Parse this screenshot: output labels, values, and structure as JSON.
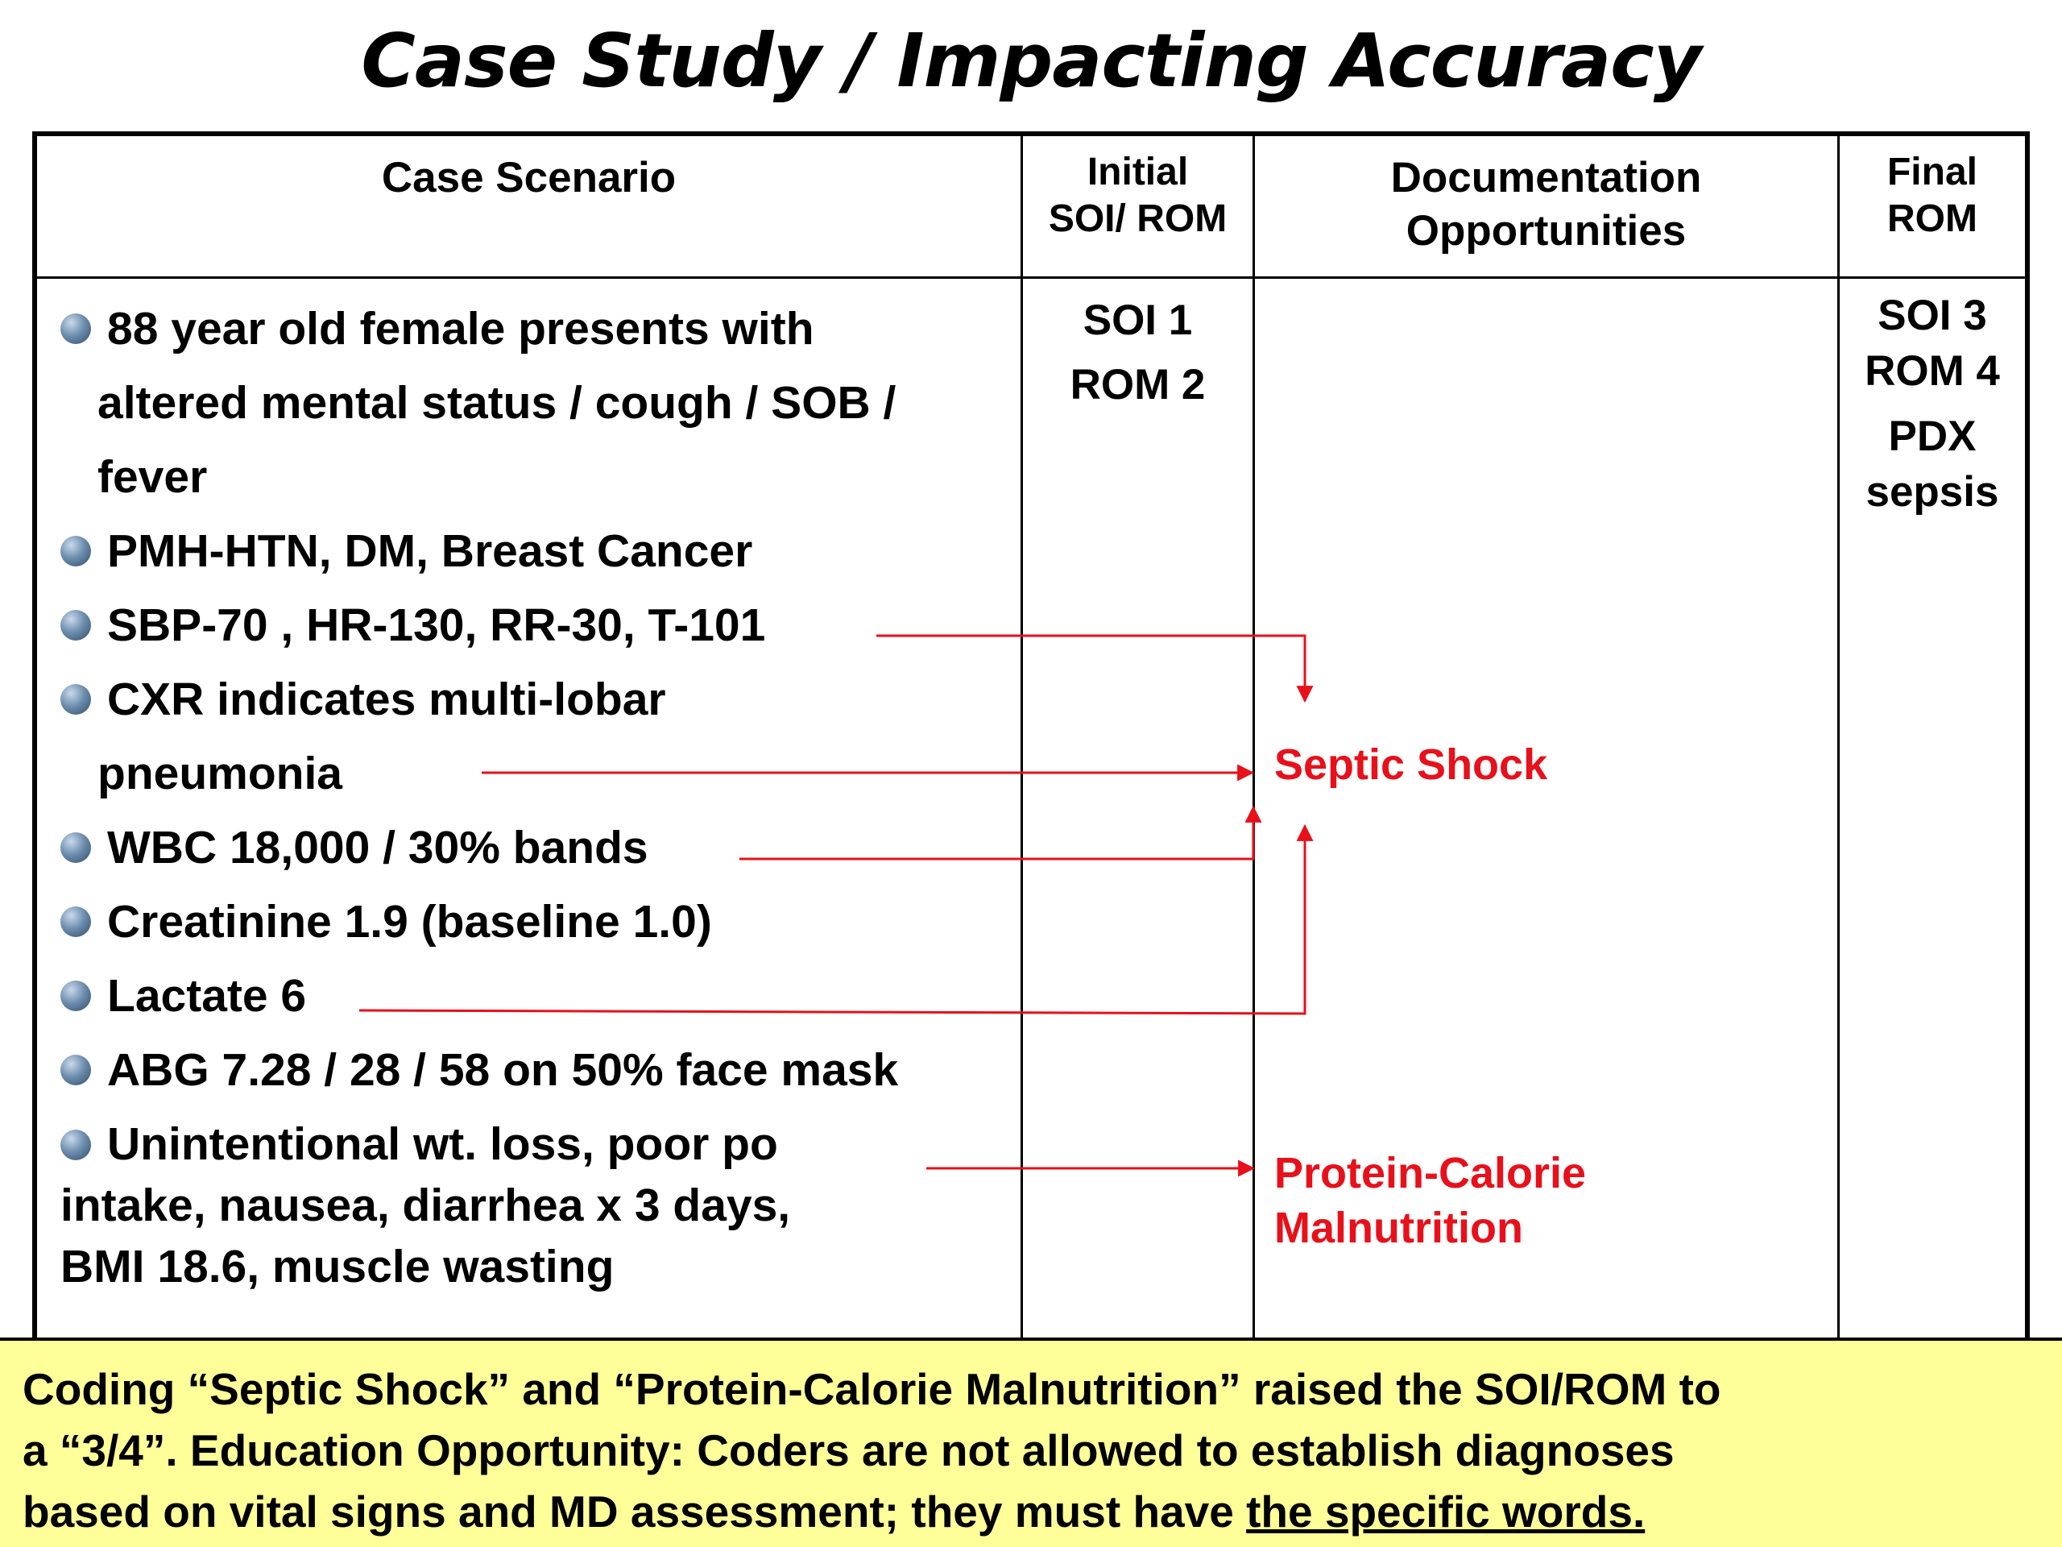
{
  "title": "Case Study / Impacting Accuracy",
  "headers": {
    "scenario": "Case Scenario",
    "initial": [
      "Initial",
      "SOI/ ROM"
    ],
    "documentation": [
      "Documentation",
      "Opportunities"
    ],
    "final": [
      "Final",
      "ROM"
    ]
  },
  "bullets": [
    {
      "lines": [
        "88 year old female presents with",
        "altered mental status / cough / SOB /",
        "fever"
      ]
    },
    {
      "lines": [
        "PMH-HTN, DM, Breast Cancer"
      ]
    },
    {
      "lines": [
        "SBP-70 , HR-130, RR-30, T-101"
      ]
    },
    {
      "lines": [
        "CXR indicates multi-lobar",
        "pneumonia"
      ]
    },
    {
      "lines": [
        "WBC 18,000 / 30% bands"
      ]
    },
    {
      "lines": [
        "Creatinine 1.9 (baseline 1.0)"
      ]
    },
    {
      "lines": [
        "Lactate 6"
      ]
    },
    {
      "lines": [
        "ABG 7.28 / 28 / 58 on 50% face mask"
      ]
    },
    {
      "lines": [
        "Unintentional wt. loss, poor po",
        "intake, nausea, diarrhea x 3 days,",
        "BMI 18.6, muscle wasting"
      ]
    }
  ],
  "initial_values": [
    "SOI 1",
    "ROM 2"
  ],
  "final_values": [
    "SOI 3",
    "ROM 4",
    "PDX",
    "sepsis"
  ],
  "documentation_items": {
    "septic_shock": "Septic Shock",
    "malnutrition": [
      "Protein-Calorie",
      "Malnutrition"
    ]
  },
  "footer": {
    "line1": "Coding “Septic Shock” and “Protein-Calorie Malnutrition” raised the SOI/ROM to",
    "line2": "a “3/4”.  Education Opportunity: Coders are not allowed to establish diagnoses",
    "line3_prefix": "based on vital signs and MD assessment; they must have ",
    "line3_underlined": "the specific words."
  },
  "colors": {
    "accent_red": "#e8101a",
    "footer_bg": "#ffff99"
  }
}
